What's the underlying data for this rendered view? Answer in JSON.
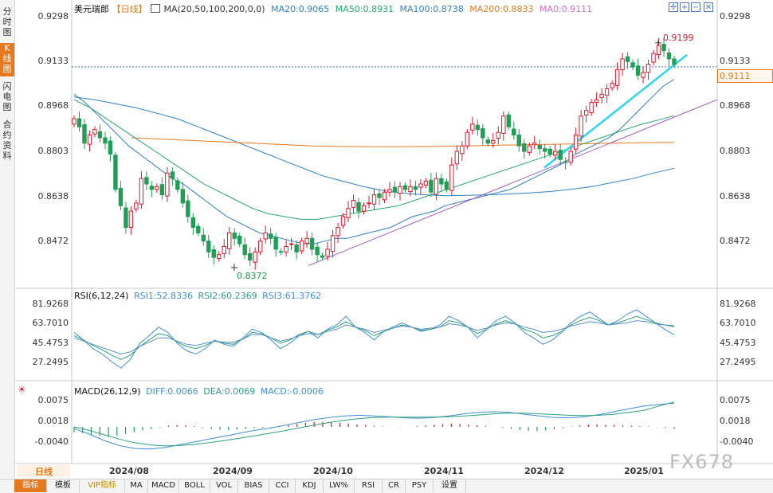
{
  "sidebar": {
    "tabs": [
      {
        "label": "分时图",
        "active": false
      },
      {
        "label": "K线图",
        "active": true
      },
      {
        "label": "闪电图",
        "active": false
      },
      {
        "label": "合约资料",
        "active": false
      }
    ]
  },
  "header": {
    "symbol": "美元瑞郎",
    "period": "【日线】",
    "ma_params": "MA(20,50,100,200,0,0)",
    "ma20": "MA20:0.9065",
    "ma50": "MA50:0.8931",
    "ma100": "MA100:0.8738",
    "ma200": "MA200:0.8833",
    "ma0": "MA0:0.9111"
  },
  "price_axis": [
    "0.9298",
    "0.9133",
    "0.8968",
    "0.8803",
    "0.8638",
    "0.8472"
  ],
  "current_price": "0.9111",
  "high_label": "0.9199",
  "low_label": "0.8372",
  "rsi": {
    "title": "RSI(6,12,24)",
    "rsi1": "RSI1:52.8336",
    "rsi2": "RSI2:60.2369",
    "rsi3": "RSI3:61.3762",
    "axis": [
      "81.9268",
      "63.7010",
      "45.4753",
      "27.2495"
    ]
  },
  "macd": {
    "title": "MACD(26,12,9)",
    "diff": "DIFF:0.0066",
    "dea": "DEA:0.0069",
    "macd": "MACD:-0.0006",
    "axis": [
      "0.0075",
      "0.0018",
      "-0.0040"
    ]
  },
  "x_axis": {
    "period_button": "日线",
    "dates": [
      "2024/08",
      "2024/09",
      "2024/10",
      "2024/11",
      "2024/12",
      "2025/01"
    ]
  },
  "toolbar": [
    "指标",
    "模板",
    "VIP指标",
    "MA",
    "MACD",
    "BOLL",
    "VOL",
    "BIAS",
    "CCI",
    "KDJ",
    "LW%",
    "RSI",
    "CR",
    "PSY",
    "设置"
  ],
  "watermark": "FX678",
  "colors": {
    "up": "#e0182d",
    "down": "#1e9e56",
    "ma20": "#2f7fc1",
    "ma50": "#27a86b",
    "ma100": "#2f7fc1",
    "ma200": "#e8781e",
    "trend1": "#28d7ef",
    "trend2": "#a35cbc"
  },
  "chart_data": [
    {
      "type": "candlestick",
      "title": "美元瑞郎 日线",
      "y_ticks": [
        0.9298,
        0.9133,
        0.8968,
        0.8803,
        0.8638,
        0.8472
      ],
      "ylim": [
        0.83,
        0.9298
      ],
      "closes": [
        0.892,
        0.889,
        0.883,
        0.886,
        0.888,
        0.885,
        0.883,
        0.879,
        0.866,
        0.86,
        0.852,
        0.858,
        0.861,
        0.87,
        0.868,
        0.866,
        0.867,
        0.864,
        0.872,
        0.87,
        0.866,
        0.861,
        0.856,
        0.852,
        0.85,
        0.847,
        0.843,
        0.841,
        0.842,
        0.845,
        0.85,
        0.848,
        0.846,
        0.842,
        0.84,
        0.843,
        0.847,
        0.85,
        0.848,
        0.844,
        0.843,
        0.845,
        0.846,
        0.843,
        0.847,
        0.848,
        0.844,
        0.842,
        0.841,
        0.844,
        0.849,
        0.852,
        0.856,
        0.859,
        0.862,
        0.858,
        0.86,
        0.861,
        0.864,
        0.863,
        0.865,
        0.866,
        0.865,
        0.867,
        0.866,
        0.867,
        0.866,
        0.868,
        0.869,
        0.865,
        0.87,
        0.868,
        0.866,
        0.875,
        0.88,
        0.882,
        0.887,
        0.89,
        0.888,
        0.885,
        0.883,
        0.884,
        0.887,
        0.893,
        0.889,
        0.886,
        0.882,
        0.88,
        0.882,
        0.883,
        0.881,
        0.88,
        0.879,
        0.88,
        0.877,
        0.876,
        0.88,
        0.886,
        0.893,
        0.895,
        0.898,
        0.899,
        0.901,
        0.903,
        0.905,
        0.91,
        0.914,
        0.913,
        0.911,
        0.908,
        0.909,
        0.912,
        0.916,
        0.919,
        0.917,
        0.914,
        0.912
      ],
      "low": 0.8372,
      "high": 0.9199,
      "current": 0.9111,
      "series": [
        {
          "name": "MA20",
          "values": [
            0.901,
            0.898,
            0.894,
            0.89,
            0.886,
            0.882,
            0.879,
            0.876,
            0.873,
            0.87,
            0.868,
            0.865,
            0.862,
            0.859,
            0.856,
            0.854,
            0.852,
            0.85,
            0.849,
            0.848,
            0.847,
            0.846,
            0.846,
            0.847,
            0.848,
            0.848,
            0.849,
            0.85,
            0.851,
            0.852,
            0.854,
            0.856,
            0.857,
            0.858,
            0.86,
            0.861,
            0.862,
            0.863,
            0.864,
            0.865,
            0.866,
            0.868,
            0.87,
            0.872,
            0.874,
            0.876,
            0.879,
            0.881,
            0.883,
            0.885,
            0.888,
            0.892,
            0.896,
            0.9,
            0.904,
            0.9065
          ]
        },
        {
          "name": "MA50",
          "values": [
            0.899,
            0.896,
            0.892,
            0.888,
            0.884,
            0.88,
            0.876,
            0.872,
            0.868,
            0.865,
            0.862,
            0.859,
            0.857,
            0.856,
            0.855,
            0.855,
            0.856,
            0.857,
            0.858,
            0.859,
            0.86,
            0.862,
            0.864,
            0.866,
            0.868,
            0.87,
            0.872,
            0.874,
            0.876,
            0.878,
            0.88,
            0.882,
            0.884,
            0.886,
            0.888,
            0.89,
            0.8915,
            0.8931
          ]
        },
        {
          "name": "MA100",
          "values": [
            0.9,
            0.899,
            0.8975,
            0.896,
            0.894,
            0.892,
            0.889,
            0.886,
            0.883,
            0.88,
            0.877,
            0.874,
            0.871,
            0.869,
            0.867,
            0.8655,
            0.8645,
            0.864,
            0.8637,
            0.8638,
            0.864,
            0.8643,
            0.8647,
            0.8652,
            0.866,
            0.867,
            0.8685,
            0.87,
            0.872,
            0.8738
          ]
        },
        {
          "name": "MA200",
          "values": [
            0.885,
            0.8845,
            0.884,
            0.8835,
            0.883,
            0.8825,
            0.882,
            0.8818,
            0.8817,
            0.8817,
            0.8818,
            0.882,
            0.8822,
            0.8824,
            0.8826,
            0.8828,
            0.883,
            0.8832,
            0.8833
          ]
        }
      ]
    },
    {
      "type": "line",
      "title": "RSI(6,12,24)",
      "y_ticks": [
        81.9268,
        63.701,
        45.4753,
        27.2495
      ],
      "ylim": [
        20,
        90
      ],
      "series": [
        {
          "name": "RSI1",
          "values": [
            55,
            48,
            40,
            35,
            28,
            22,
            30,
            45,
            52,
            60,
            55,
            45,
            38,
            35,
            40,
            48,
            44,
            42,
            50,
            58,
            55,
            48,
            40,
            45,
            52,
            56,
            50,
            58,
            62,
            70,
            60,
            55,
            48,
            56,
            60,
            64,
            60,
            56,
            58,
            62,
            70,
            66,
            60,
            50,
            58,
            66,
            70,
            64,
            55,
            50,
            44,
            48,
            55,
            64,
            70,
            74,
            68,
            62,
            66,
            72,
            76,
            70,
            64,
            58,
            52.8336
          ]
        },
        {
          "name": "RSI2",
          "values": [
            52,
            48,
            43,
            39,
            34,
            30,
            34,
            42,
            48,
            54,
            52,
            46,
            42,
            40,
            43,
            47,
            45,
            44,
            49,
            55,
            54,
            50,
            45,
            48,
            53,
            56,
            53,
            57,
            60,
            65,
            60,
            57,
            52,
            56,
            59,
            62,
            60,
            57,
            58,
            60,
            66,
            64,
            60,
            54,
            58,
            63,
            66,
            63,
            58,
            55,
            50,
            52,
            56,
            62,
            66,
            69,
            66,
            62,
            64,
            67,
            70,
            67,
            64,
            62,
            60.2369
          ]
        },
        {
          "name": "RSI3",
          "values": [
            50,
            47,
            44,
            41,
            38,
            35,
            37,
            42,
            46,
            50,
            50,
            47,
            44,
            43,
            45,
            47,
            46,
            46,
            49,
            53,
            53,
            50,
            47,
            49,
            52,
            54,
            53,
            56,
            58,
            62,
            60,
            58,
            55,
            57,
            59,
            61,
            60,
            58,
            59,
            60,
            63,
            62,
            60,
            57,
            59,
            62,
            64,
            63,
            60,
            58,
            55,
            56,
            58,
            61,
            63,
            65,
            64,
            62,
            63,
            64,
            66,
            65,
            63,
            62,
            61.3762
          ]
        }
      ]
    },
    {
      "type": "bar",
      "title": "MACD(26,12,9)",
      "y_ticks": [
        0.0075,
        0.0018,
        -0.004
      ],
      "ylim": [
        -0.0065,
        0.0092
      ],
      "values": [
        -0.0015,
        -0.0018,
        -0.0022,
        -0.0026,
        -0.0028,
        -0.0025,
        -0.002,
        -0.0015,
        -0.001,
        -0.0006,
        -0.0002,
        0.0003,
        0.0005,
        0.0004,
        0.0002,
        -0.0002,
        -0.0006,
        -0.0008,
        -0.0009,
        -0.0008,
        -0.0006,
        -0.0004,
        -0.0003,
        -0.0001,
        0.0002,
        0.0005,
        0.0008,
        0.0011,
        0.0013,
        0.0014,
        0.0013,
        0.0011,
        0.0009,
        0.0007,
        0.0005,
        0.0003,
        0.0001,
        0.0,
        -0.0001,
        0.0,
        0.0002,
        0.0004,
        0.0006,
        0.0008,
        0.0009,
        0.0008,
        0.0006,
        0.0004,
        0.0002,
        0.0,
        -0.0003,
        -0.0006,
        -0.0009,
        -0.0011,
        -0.0012,
        -0.001,
        -0.0007,
        -0.0003,
        0.0001,
        0.0004,
        0.0006,
        0.0007,
        0.0006,
        0.0005,
        0.0004,
        0.0003,
        0.0002,
        0.0001,
        -0.0001,
        -0.0003,
        -0.0006
      ],
      "series": [
        {
          "name": "DIFF",
          "values": [
            -0.0005,
            -0.002,
            -0.0038,
            -0.0052,
            -0.006,
            -0.0062,
            -0.0058,
            -0.005,
            -0.0042,
            -0.0034,
            -0.0026,
            -0.0018,
            -0.001,
            -0.0004,
            0.0004,
            0.0012,
            0.002,
            0.0026,
            0.003,
            0.0032,
            0.003,
            0.0028,
            0.0025,
            0.0024,
            0.0026,
            0.003,
            0.0036,
            0.004,
            0.0042,
            0.004,
            0.0035,
            0.003,
            0.0026,
            0.0025,
            0.0028,
            0.0034,
            0.0042,
            0.005,
            0.0058,
            0.0062,
            0.0066
          ]
        },
        {
          "name": "DEA",
          "values": [
            0.0,
            -0.001,
            -0.0022,
            -0.0034,
            -0.0044,
            -0.005,
            -0.0053,
            -0.0052,
            -0.0049,
            -0.0044,
            -0.0038,
            -0.0032,
            -0.0025,
            -0.0018,
            -0.0011,
            -0.0003,
            0.0005,
            0.0012,
            0.0018,
            0.0023,
            0.0026,
            0.0027,
            0.0027,
            0.0027,
            0.0027,
            0.0028,
            0.003,
            0.0033,
            0.0036,
            0.0038,
            0.0038,
            0.0036,
            0.0034,
            0.0032,
            0.0031,
            0.0032,
            0.0035,
            0.004,
            0.0046,
            0.0058,
            0.0069
          ]
        }
      ]
    }
  ]
}
